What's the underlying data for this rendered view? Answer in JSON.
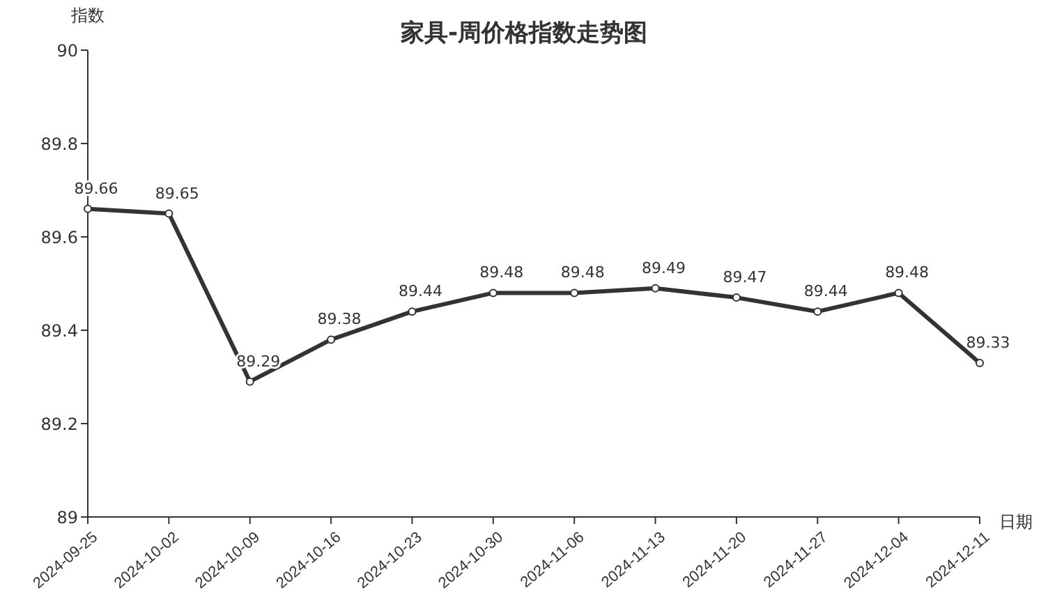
{
  "chart_data": {
    "type": "line",
    "title": "家具-周价格指数走势图",
    "xlabel": "日期",
    "ylabel": "指数",
    "categories": [
      "2024-09-25",
      "2024-10-02",
      "2024-10-09",
      "2024-10-16",
      "2024-10-23",
      "2024-10-30",
      "2024-11-06",
      "2024-11-13",
      "2024-11-20",
      "2024-11-27",
      "2024-12-04",
      "2024-12-11"
    ],
    "series": [
      {
        "color": "#333333",
        "values": [
          89.66,
          89.65,
          89.29,
          89.38,
          89.44,
          89.48,
          89.48,
          89.49,
          89.47,
          89.44,
          89.48,
          89.33
        ]
      }
    ],
    "ylim": [
      89,
      90
    ],
    "yticks": [
      89,
      89.2,
      89.4,
      89.6,
      89.8,
      90
    ],
    "data_labels": true,
    "marker": "circle",
    "line_style": "solid"
  }
}
